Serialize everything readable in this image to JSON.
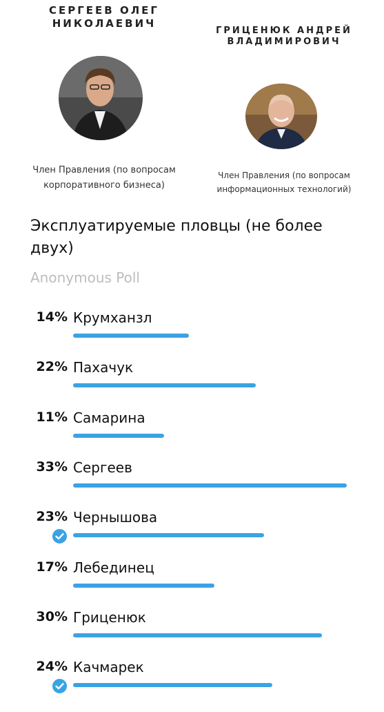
{
  "people": [
    {
      "name_line1": "СЕРГЕЕВ ОЛЕГ",
      "name_line2": "НИКОЛАЕВИЧ",
      "role_line1": "Член Правления (по вопросам",
      "role_line2": "корпоративного бизнеса)"
    },
    {
      "name_line1": "ГРИЦЕНЮК АНДРЕЙ",
      "name_line2": "ВЛАДИМИРОВИЧ",
      "role_line1": "Член Правления (по вопросам",
      "role_line2": "информационных технологий)"
    }
  ],
  "poll": {
    "question": "Эксплуатируемые пловцы (не более двух)",
    "type": "Anonymous Poll",
    "accent_color": "#3ba3e3",
    "options": [
      {
        "percent_label": "14%",
        "label": "Крумханзл",
        "percent": 14,
        "selected": false
      },
      {
        "percent_label": "22%",
        "label": "Пахачук",
        "percent": 22,
        "selected": false
      },
      {
        "percent_label": "11%",
        "label": "Самарина",
        "percent": 11,
        "selected": false
      },
      {
        "percent_label": "33%",
        "label": "Сергеев",
        "percent": 33,
        "selected": false
      },
      {
        "percent_label": "23%",
        "label": "Чернышова",
        "percent": 23,
        "selected": true
      },
      {
        "percent_label": "17%",
        "label": "Лебединец",
        "percent": 17,
        "selected": false
      },
      {
        "percent_label": "30%",
        "label": "Гриценюк",
        "percent": 30,
        "selected": false
      },
      {
        "percent_label": "24%",
        "label": "Качмарек",
        "percent": 24,
        "selected": true
      }
    ]
  },
  "icons": {
    "check": "check-circle-icon"
  }
}
